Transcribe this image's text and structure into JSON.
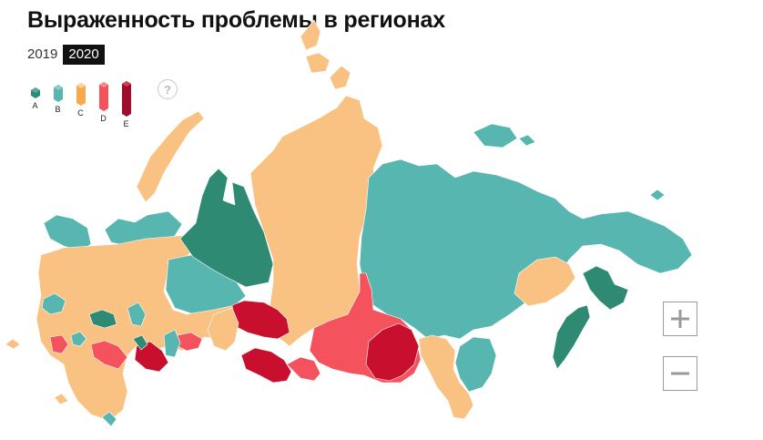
{
  "title": "Выраженность проблемы в регионах",
  "years": [
    "2019",
    "2020"
  ],
  "active_year": "2020",
  "legend": [
    {
      "label": "A",
      "color": "#2e8a72"
    },
    {
      "label": "B",
      "color": "#57b7b0"
    },
    {
      "label": "C",
      "color": "#f9c283"
    },
    {
      "label": "D",
      "color": "#f4525c"
    },
    {
      "label": "E",
      "color": "#c8102e"
    }
  ],
  "help_label": "?",
  "zoom": {
    "in_icon": "plus-icon",
    "out_icon": "minus-icon"
  }
}
